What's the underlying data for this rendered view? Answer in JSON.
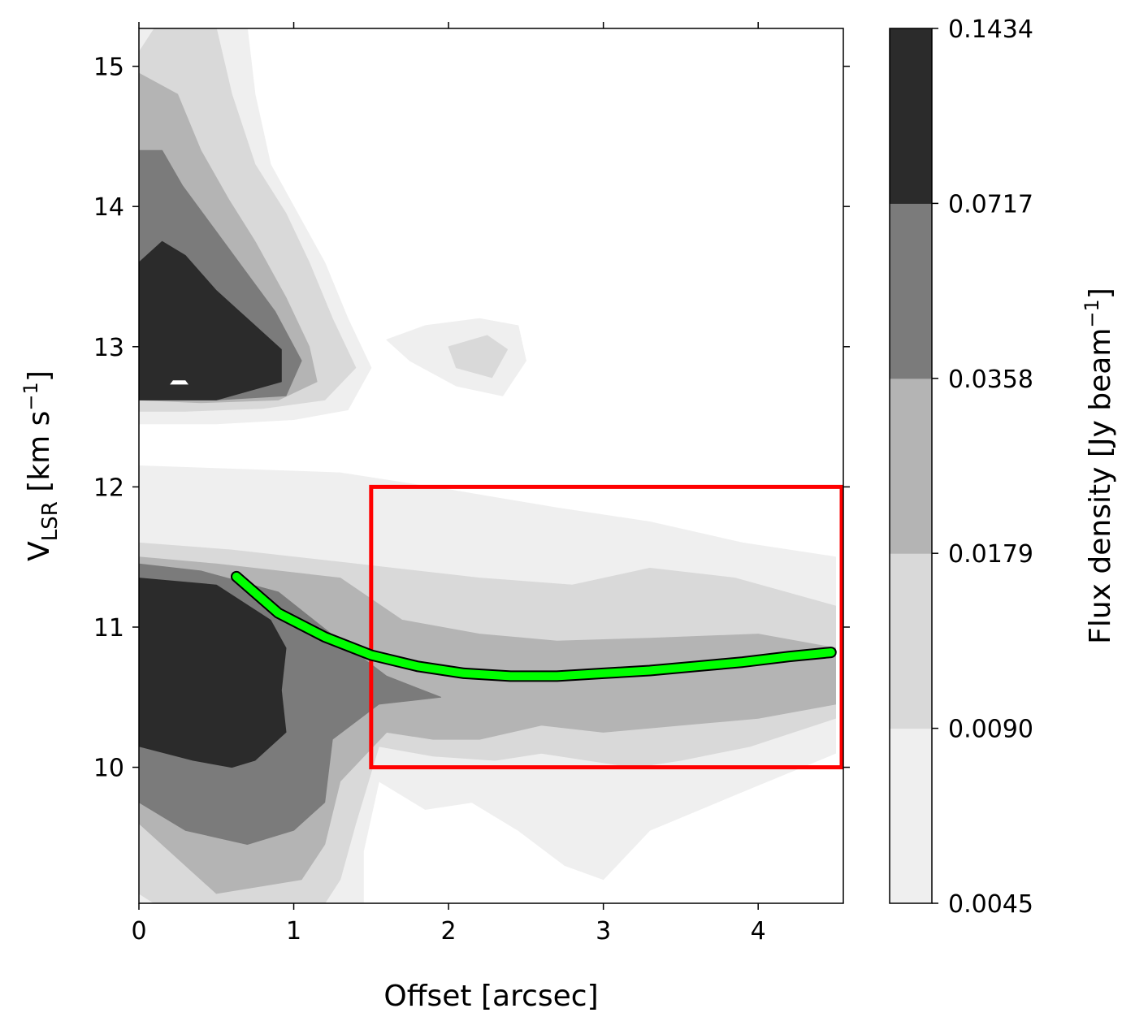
{
  "chart_data": {
    "type": "contour",
    "xlabel": "Offset [arcsec]",
    "ylabel": {
      "main": "V",
      "sub": "LSR",
      "rest": " [km s",
      "sup": "−1",
      "end": "]"
    },
    "xlim": [
      0,
      4.55
    ],
    "ylim": [
      9.03,
      15.27
    ],
    "xticks": [
      0,
      1,
      2,
      3,
      4
    ],
    "yticks": [
      10,
      11,
      12,
      13,
      14,
      15
    ],
    "colorbar": {
      "label": {
        "main": "Flux density [Jy beam",
        "sup": "−1",
        "end": "]"
      },
      "levels": [
        "0.0045",
        "0.0090",
        "0.0179",
        "0.0358",
        "0.0717",
        "0.1434"
      ],
      "colors": [
        "#efefef",
        "#d9d9d9",
        "#b4b4b4",
        "#7b7b7b",
        "#2b2b2b"
      ]
    },
    "contours": [
      {
        "level": 0,
        "color": "#efefef",
        "regions": [
          [
            [
              0,
              15.27
            ],
            [
              0.7,
              15.27
            ],
            [
              0.75,
              14.8
            ],
            [
              0.85,
              14.3
            ],
            [
              1.05,
              13.9
            ],
            [
              1.2,
              13.6
            ],
            [
              1.35,
              13.2
            ],
            [
              1.5,
              12.85
            ],
            [
              1.35,
              12.55
            ],
            [
              1.0,
              12.48
            ],
            [
              0.5,
              12.45
            ],
            [
              0,
              12.45
            ]
          ],
          [
            [
              1.6,
              13.05
            ],
            [
              1.85,
              13.15
            ],
            [
              2.2,
              13.2
            ],
            [
              2.45,
              13.15
            ],
            [
              2.5,
              12.9
            ],
            [
              2.35,
              12.65
            ],
            [
              2.05,
              12.72
            ],
            [
              1.75,
              12.9
            ]
          ],
          [
            [
              0,
              12.15
            ],
            [
              0.8,
              12.12
            ],
            [
              1.3,
              12.1
            ],
            [
              2.0,
              11.98
            ],
            [
              2.7,
              11.85
            ],
            [
              3.3,
              11.75
            ],
            [
              3.9,
              11.6
            ],
            [
              4.5,
              11.5
            ],
            [
              4.5,
              10.1
            ],
            [
              3.95,
              9.85
            ],
            [
              3.3,
              9.55
            ],
            [
              3.0,
              9.2
            ],
            [
              2.75,
              9.3
            ],
            [
              2.45,
              9.55
            ],
            [
              2.15,
              9.75
            ],
            [
              1.85,
              9.7
            ],
            [
              1.55,
              9.9
            ],
            [
              1.45,
              9.4
            ],
            [
              1.45,
              9.03
            ],
            [
              0,
              9.03
            ]
          ]
        ]
      },
      {
        "level": 1,
        "color": "#d9d9d9",
        "regions": [
          [
            [
              0.1,
              15.27
            ],
            [
              0.5,
              15.27
            ],
            [
              0.6,
              14.8
            ],
            [
              0.75,
              14.3
            ],
            [
              0.95,
              13.95
            ],
            [
              1.1,
              13.6
            ],
            [
              1.25,
              13.2
            ],
            [
              1.4,
              12.85
            ],
            [
              1.2,
              12.62
            ],
            [
              0.8,
              12.56
            ],
            [
              0.3,
              12.54
            ],
            [
              0,
              12.54
            ],
            [
              0,
              15.1
            ]
          ],
          [
            [
              2.0,
              13.0
            ],
            [
              2.25,
              13.08
            ],
            [
              2.38,
              12.98
            ],
            [
              2.28,
              12.78
            ],
            [
              2.05,
              12.85
            ]
          ],
          [
            [
              0,
              11.6
            ],
            [
              0.6,
              11.55
            ],
            [
              1.4,
              11.45
            ],
            [
              2.2,
              11.35
            ],
            [
              2.8,
              11.3
            ],
            [
              3.3,
              11.42
            ],
            [
              3.85,
              11.35
            ],
            [
              4.5,
              11.15
            ],
            [
              4.5,
              10.35
            ],
            [
              3.95,
              10.15
            ],
            [
              3.5,
              10.05
            ],
            [
              3.2,
              10.0
            ],
            [
              2.9,
              10.05
            ],
            [
              2.6,
              10.1
            ],
            [
              2.3,
              10.05
            ],
            [
              1.9,
              10.08
            ],
            [
              1.55,
              10.15
            ],
            [
              1.4,
              9.6
            ],
            [
              1.3,
              9.2
            ],
            [
              1.2,
              9.03
            ],
            [
              0.1,
              9.03
            ],
            [
              0,
              9.1
            ]
          ]
        ]
      },
      {
        "level": 2,
        "color": "#b4b4b4",
        "regions": [
          [
            [
              0,
              14.95
            ],
            [
              0.25,
              14.8
            ],
            [
              0.4,
              14.4
            ],
            [
              0.58,
              14.05
            ],
            [
              0.75,
              13.75
            ],
            [
              0.95,
              13.35
            ],
            [
              1.1,
              13.0
            ],
            [
              1.15,
              12.75
            ],
            [
              0.9,
              12.62
            ],
            [
              0.4,
              12.6
            ],
            [
              0,
              12.62
            ]
          ],
          [
            [
              0,
              11.5
            ],
            [
              0.5,
              11.45
            ],
            [
              1.3,
              11.35
            ],
            [
              1.7,
              11.05
            ],
            [
              2.2,
              10.95
            ],
            [
              2.7,
              10.9
            ],
            [
              3.3,
              10.92
            ],
            [
              4.0,
              10.95
            ],
            [
              4.5,
              10.85
            ],
            [
              4.5,
              10.45
            ],
            [
              4.0,
              10.35
            ],
            [
              3.5,
              10.3
            ],
            [
              3.0,
              10.25
            ],
            [
              2.6,
              10.3
            ],
            [
              2.2,
              10.2
            ],
            [
              1.9,
              10.2
            ],
            [
              1.6,
              10.25
            ],
            [
              1.3,
              9.9
            ],
            [
              1.2,
              9.45
            ],
            [
              1.05,
              9.2
            ],
            [
              0.5,
              9.1
            ],
            [
              0.1,
              9.5
            ],
            [
              0,
              9.6
            ]
          ]
        ]
      },
      {
        "level": 3,
        "color": "#7b7b7b",
        "regions": [
          [
            [
              0,
              14.4
            ],
            [
              0.15,
              14.4
            ],
            [
              0.28,
              14.15
            ],
            [
              0.48,
              13.85
            ],
            [
              0.68,
              13.55
            ],
            [
              0.88,
              13.25
            ],
            [
              1.05,
              12.9
            ],
            [
              0.95,
              12.65
            ],
            [
              0.5,
              12.62
            ],
            [
              0,
              12.62
            ]
          ],
          [
            [
              0,
              11.45
            ],
            [
              0.4,
              11.4
            ],
            [
              0.9,
              11.25
            ],
            [
              1.3,
              10.9
            ],
            [
              1.6,
              10.65
            ],
            [
              1.95,
              10.5
            ],
            [
              1.55,
              10.45
            ],
            [
              1.25,
              10.2
            ],
            [
              1.2,
              9.75
            ],
            [
              1.0,
              9.55
            ],
            [
              0.7,
              9.45
            ],
            [
              0.3,
              9.55
            ],
            [
              0,
              9.75
            ]
          ]
        ]
      },
      {
        "level": 4,
        "color": "#2b2b2b",
        "regions": [
          [
            [
              0,
              13.6
            ],
            [
              0.15,
              13.75
            ],
            [
              0.3,
              13.65
            ],
            [
              0.5,
              13.4
            ],
            [
              0.7,
              13.2
            ],
            [
              0.92,
              12.98
            ],
            [
              0.92,
              12.75
            ],
            [
              0.5,
              12.62
            ],
            [
              0,
              12.62
            ]
          ],
          [
            [
              0,
              11.35
            ],
            [
              0.5,
              11.3
            ],
            [
              0.85,
              11.05
            ],
            [
              0.95,
              10.85
            ],
            [
              0.92,
              10.55
            ],
            [
              0.95,
              10.25
            ],
            [
              0.75,
              10.05
            ],
            [
              0.6,
              10.0
            ],
            [
              0.35,
              10.05
            ],
            [
              0,
              10.15
            ]
          ]
        ]
      }
    ],
    "holes": [
      [
        [
          0.22,
          12.76
        ],
        [
          0.3,
          12.76
        ],
        [
          0.32,
          12.73
        ],
        [
          0.2,
          12.73
        ]
      ]
    ],
    "box": {
      "x0": 1.5,
      "x1": 4.55,
      "y0": 10.0,
      "y1": 12.0,
      "color": "#ff0000"
    },
    "curve": {
      "color": "#00ff00",
      "outline": "#000000",
      "x": [
        0.63,
        0.9,
        1.2,
        1.5,
        1.8,
        2.1,
        2.4,
        2.7,
        3.0,
        3.3,
        3.6,
        3.9,
        4.2,
        4.47
      ],
      "y": [
        11.36,
        11.1,
        10.93,
        10.8,
        10.72,
        10.67,
        10.65,
        10.65,
        10.67,
        10.69,
        10.72,
        10.75,
        10.79,
        10.82
      ]
    }
  }
}
